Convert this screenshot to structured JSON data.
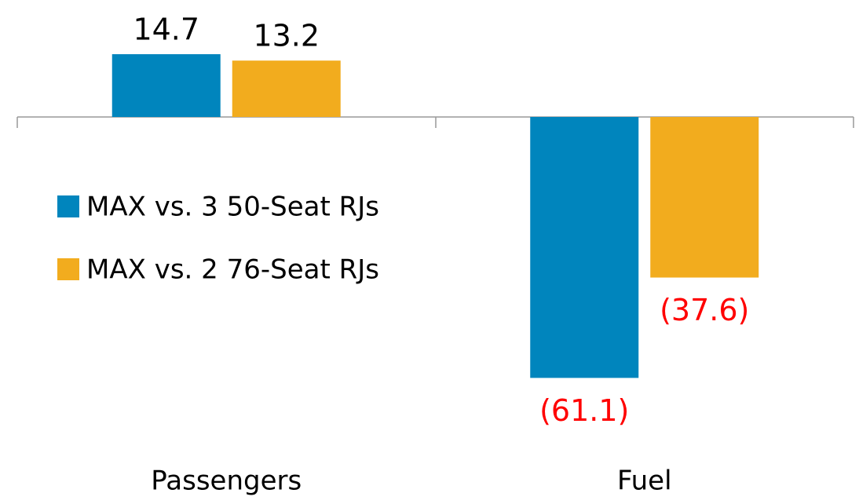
{
  "chart_data": {
    "type": "bar",
    "categories": [
      "Passengers",
      "Fuel"
    ],
    "series": [
      {
        "name": "MAX vs. 3 50-Seat RJs",
        "color": "#0085bd",
        "values": [
          14.7,
          -61.1
        ],
        "value_labels": [
          "14.7",
          "(61.1)"
        ]
      },
      {
        "name": "MAX vs. 2 76-Seat RJs",
        "color": "#f2ac1e",
        "values": [
          13.2,
          -37.6
        ],
        "value_labels": [
          "13.2",
          "(37.6)"
        ]
      }
    ],
    "legend": "left"
  }
}
